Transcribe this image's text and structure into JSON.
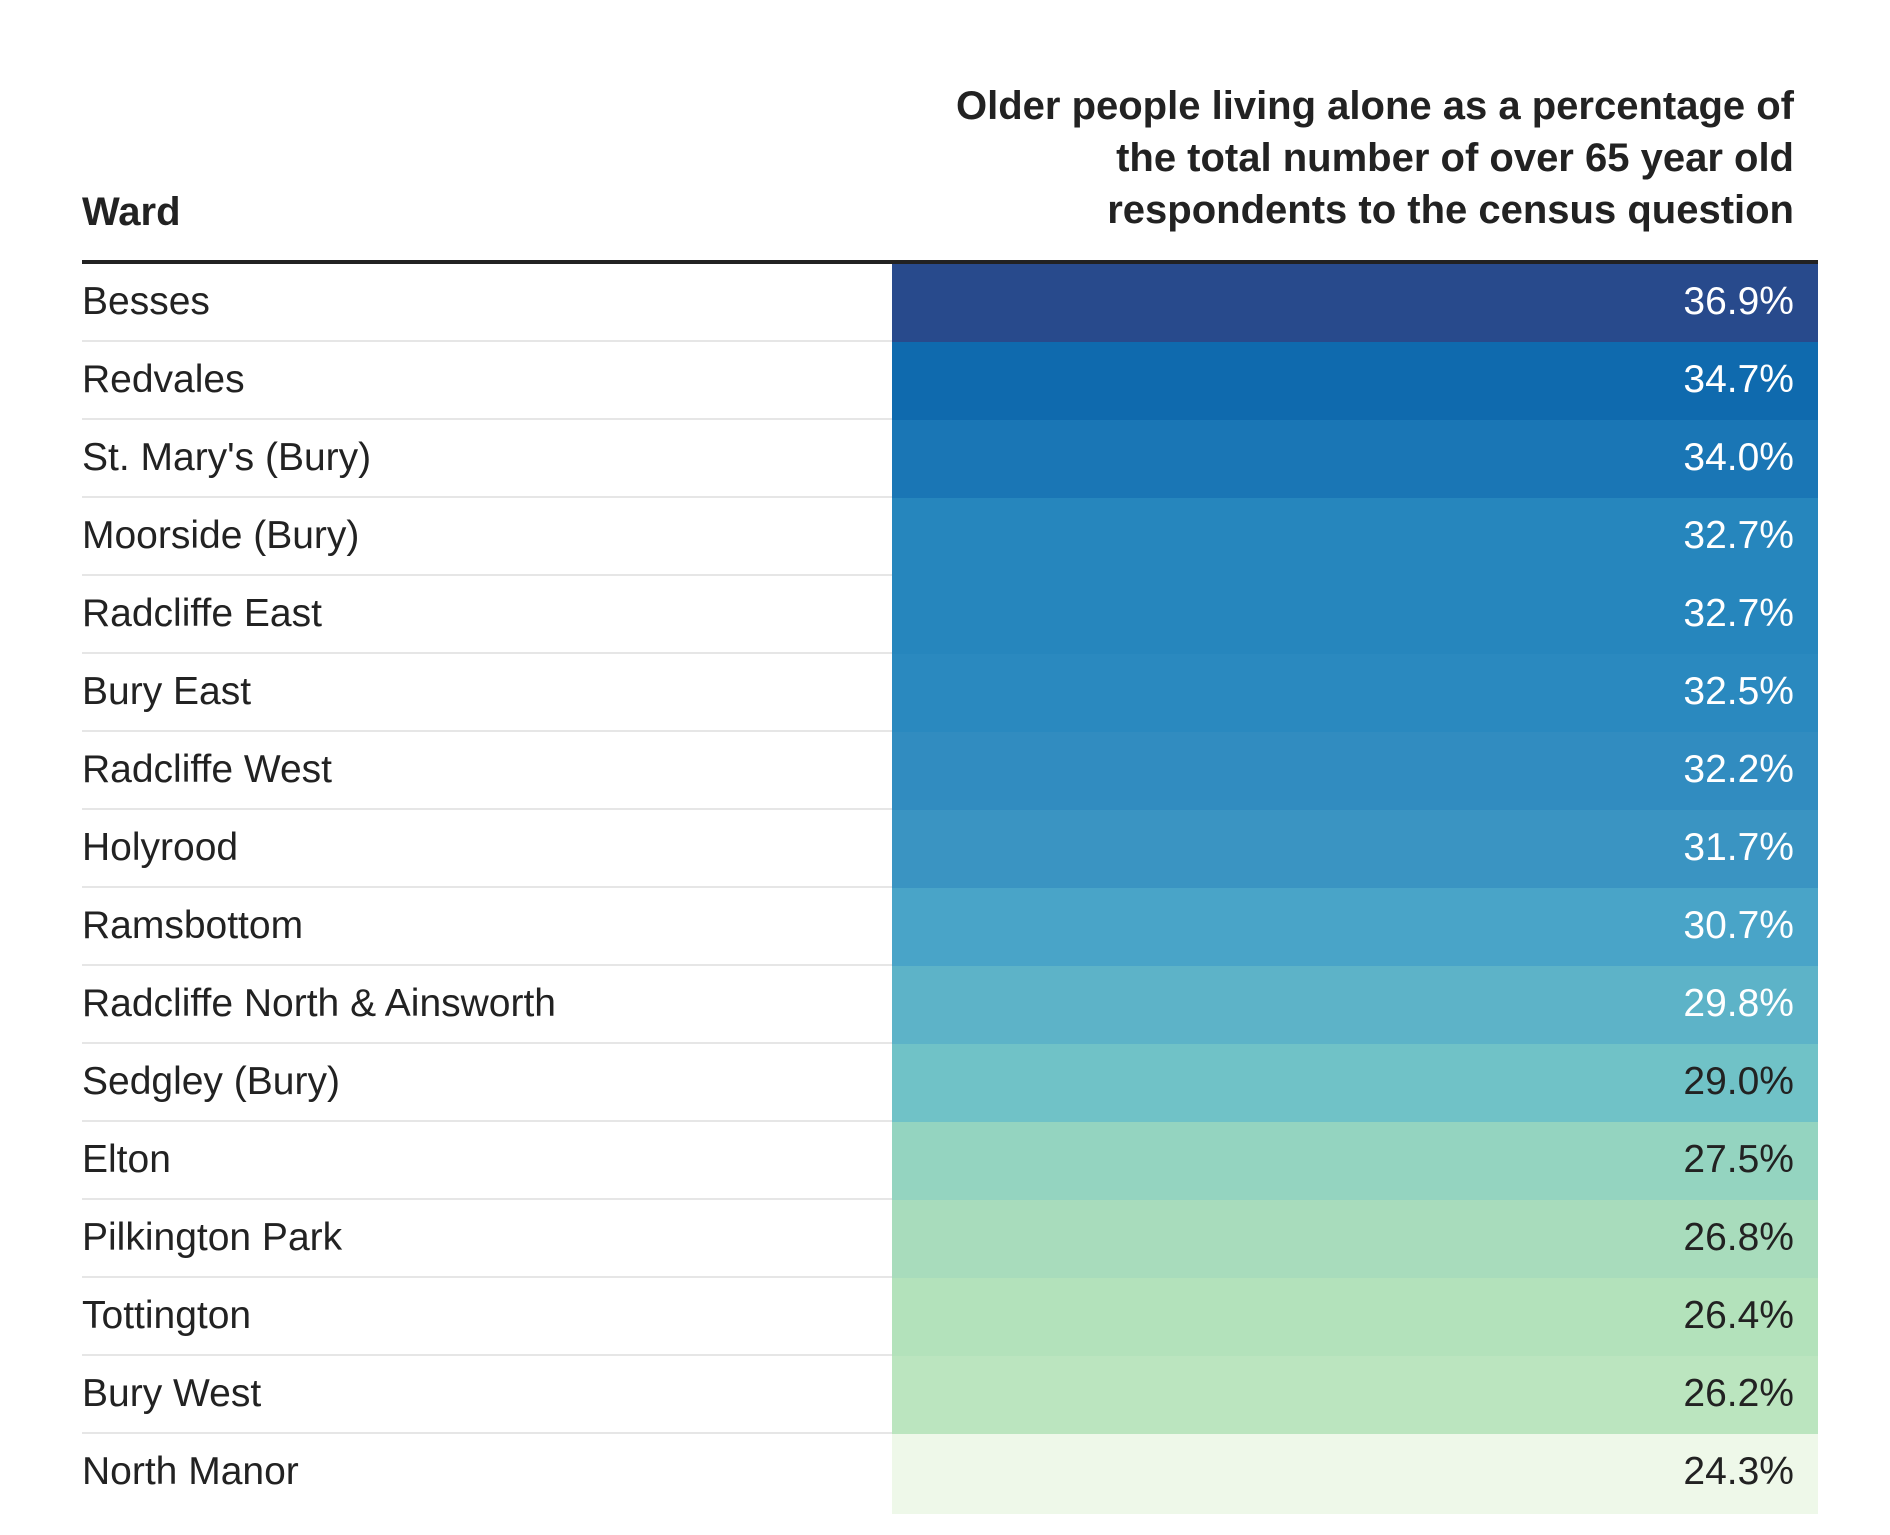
{
  "chart_data": {
    "type": "table",
    "columns": [
      "Ward",
      "Older people living alone as a percentage of the total number of over 65 year old respondents to the census question"
    ],
    "rows": [
      {
        "ward": "Besses",
        "value": 36.9,
        "label": "36.9%",
        "color": "#284a8c"
      },
      {
        "ward": "Redvales",
        "value": 34.7,
        "label": "34.7%",
        "color": "#0f6aae"
      },
      {
        "ward": "St. Mary's (Bury)",
        "value": 34.0,
        "label": "34.0%",
        "color": "#1a76b5"
      },
      {
        "ward": "Moorside (Bury)",
        "value": 32.7,
        "label": "32.7%",
        "color": "#2686bd"
      },
      {
        "ward": "Radcliffe East",
        "value": 32.7,
        "label": "32.7%",
        "color": "#2686bd"
      },
      {
        "ward": "Bury East",
        "value": 32.5,
        "label": "32.5%",
        "color": "#2a89bf"
      },
      {
        "ward": "Radcliffe West",
        "value": 32.2,
        "label": "32.2%",
        "color": "#318cc0"
      },
      {
        "ward": "Holyrood",
        "value": 31.7,
        "label": "31.7%",
        "color": "#3a94c2"
      },
      {
        "ward": "Ramsbottom",
        "value": 30.7,
        "label": "30.7%",
        "color": "#49a4c8"
      },
      {
        "ward": "Radcliffe North & Ainsworth",
        "value": 29.8,
        "label": "29.8%",
        "color": "#5db3c8"
      },
      {
        "ward": "Sedgley (Bury)",
        "value": 29.0,
        "label": "29.0%",
        "color": "#70c2c7"
      },
      {
        "ward": "Elton",
        "value": 27.5,
        "label": "27.5%",
        "color": "#94d4c0"
      },
      {
        "ward": "Pilkington Park",
        "value": 26.8,
        "label": "26.8%",
        "color": "#a8dcbc"
      },
      {
        "ward": "Tottington",
        "value": 26.4,
        "label": "26.4%",
        "color": "#b3e2bb"
      },
      {
        "ward": "Bury West",
        "value": 26.2,
        "label": "26.2%",
        "color": "#bbe5bf"
      },
      {
        "ward": "North Manor",
        "value": 24.3,
        "label": "24.3%",
        "color": "#eef8e9"
      }
    ]
  }
}
